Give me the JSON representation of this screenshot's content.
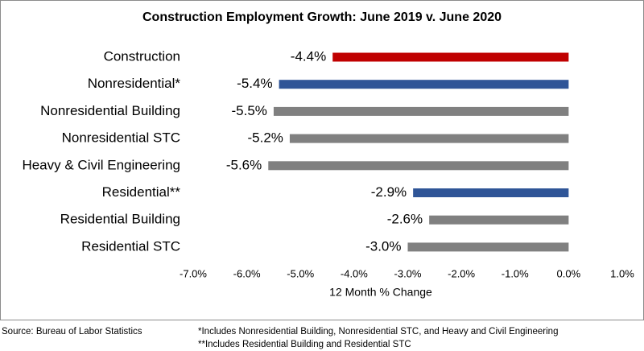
{
  "chart_data": {
    "type": "hbar",
    "title": "Construction Employment Growth: June 2019 v. June 2020",
    "categories": [
      "Construction",
      "Nonresidential*",
      "Nonresidential Building",
      "Nonresidential STC",
      "Heavy & Civil Engineering",
      "Residential**",
      "Residential Building",
      "Residential STC"
    ],
    "values": [
      -4.4,
      -5.4,
      -5.5,
      -5.2,
      -5.6,
      -2.9,
      -2.6,
      -3.0
    ],
    "value_labels": [
      "-4.4%",
      "-5.4%",
      "-5.5%",
      "-5.2%",
      "-5.6%",
      "-2.9%",
      "-2.6%",
      "-3.0%"
    ],
    "colors": [
      "#c00000",
      "#2f5597",
      "#808080",
      "#808080",
      "#808080",
      "#2f5597",
      "#808080",
      "#808080"
    ],
    "xlim": [
      -7,
      1
    ],
    "xticks": [
      {
        "value": -7,
        "label": "-7.0%"
      },
      {
        "value": -6,
        "label": "-6.0%"
      },
      {
        "value": -5,
        "label": "-5.0%"
      },
      {
        "value": -4,
        "label": "-4.0%"
      },
      {
        "value": -3,
        "label": "-3.0%"
      },
      {
        "value": -2,
        "label": "-2.0%"
      },
      {
        "value": -1,
        "label": "-1.0%"
      },
      {
        "value": 0,
        "label": "0.0%"
      },
      {
        "value": 1,
        "label": "1.0%"
      }
    ],
    "x_label": "12 Month % Change",
    "source": "Source:  Bureau of Labor Statistics",
    "footnotes": [
      "*Includes Nonresidential Building, Nonresidential STC, and Heavy and Civil Engineering",
      "**Includes Residential Building and Residential STC"
    ]
  }
}
